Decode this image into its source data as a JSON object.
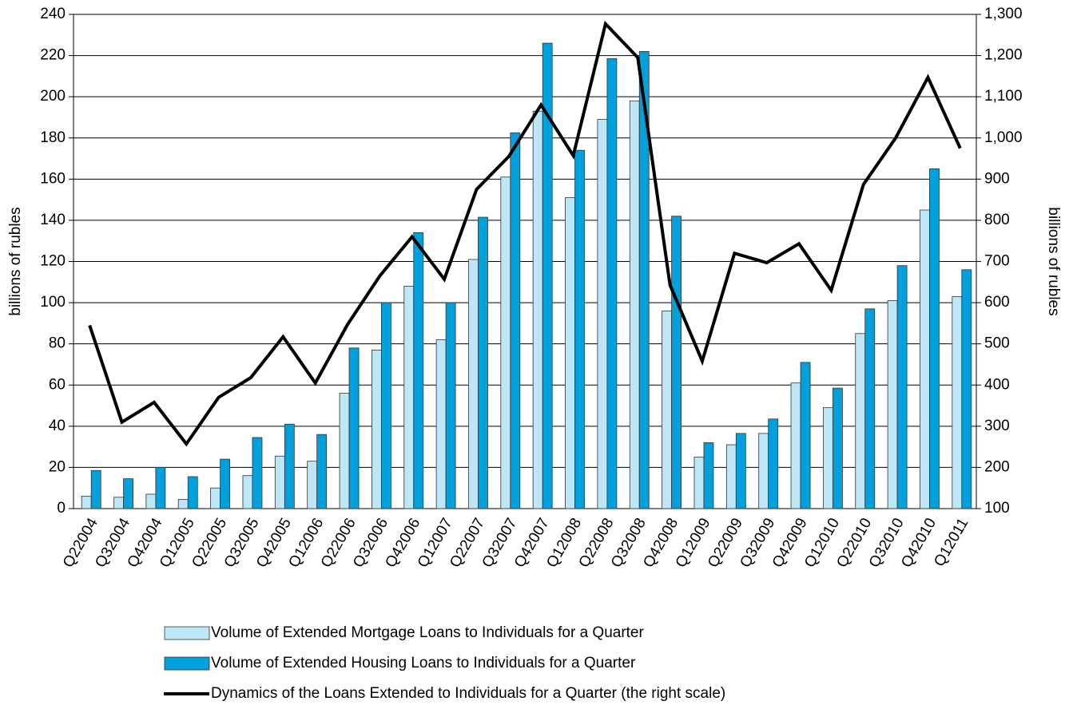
{
  "chart_data": {
    "type": "bar_line",
    "ylabel": "billions of rubles",
    "y2label": "billions of rubles",
    "categories": [
      "Q22004",
      "Q32004",
      "Q42004",
      "Q12005",
      "Q22005",
      "Q32005",
      "Q42005",
      "Q12006",
      "Q22006",
      "Q32006",
      "Q42006",
      "Q12007",
      "Q22007",
      "Q32007",
      "Q42007",
      "Q12008",
      "Q22008",
      "Q32008",
      "Q42008",
      "Q12009",
      "Q22009",
      "Q32009",
      "Q42009",
      "Q12010",
      "Q22010",
      "Q32010",
      "Q42010",
      "Q12011"
    ],
    "series": [
      {
        "name": "Volume of Extended Mortgage Loans to Individuals  for a Quarter",
        "color": "#bde6f7",
        "type": "bar",
        "values": [
          6,
          5.5,
          7,
          4.5,
          10,
          16,
          25.5,
          23,
          56,
          77,
          108,
          82,
          121,
          161,
          193,
          151,
          189,
          198,
          96,
          25,
          31,
          36.5,
          61,
          49,
          85,
          101,
          145,
          103
        ]
      },
      {
        "name": "Volume of Extended Housing Loans to Individuals for a Quarter",
        "color": "#00a0dc",
        "type": "bar",
        "values": [
          18.5,
          14.5,
          20,
          15.5,
          24,
          34.5,
          41,
          36,
          78,
          100,
          134,
          100,
          141.5,
          182.5,
          226,
          174,
          218.5,
          222,
          142,
          32,
          36.5,
          43.5,
          71,
          58.5,
          97,
          118,
          165,
          116
        ]
      },
      {
        "name": "Dynamics of the Loans Extended to Individuals for a Quarter (the right scale)",
        "color": "#000000",
        "type": "line",
        "axis": "y2",
        "values": [
          545,
          310,
          358,
          257,
          370,
          418,
          517,
          405,
          547,
          665,
          760,
          657,
          875,
          955,
          1080,
          957,
          1277,
          1195,
          643,
          458,
          720,
          697,
          743,
          630,
          887,
          1000,
          1147,
          975
        ]
      }
    ],
    "ylim": [
      0,
      240
    ],
    "yticks": [
      0,
      20,
      40,
      60,
      80,
      100,
      120,
      140,
      160,
      180,
      200,
      220,
      240
    ],
    "y2lim": [
      100,
      1300
    ],
    "y2ticks": [
      100,
      200,
      300,
      400,
      500,
      600,
      700,
      800,
      900,
      {
        "value": 1000,
        "label": "1,000"
      },
      {
        "value": 1100,
        "label": "1,100"
      },
      {
        "value": 1200,
        "label": "1,200"
      },
      {
        "value": 1300,
        "label": "1,300"
      }
    ],
    "grid": true
  }
}
